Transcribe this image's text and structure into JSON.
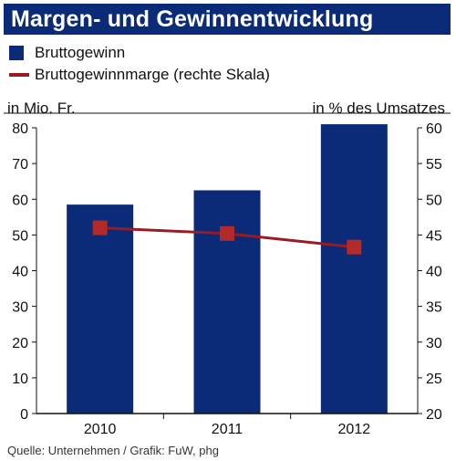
{
  "header": {
    "title": "Margen- und Gewinnentwicklung"
  },
  "legend": {
    "bar_label": "Bruttogewinn",
    "line_label": "Bruttogewinnmarge (rechte Skala)"
  },
  "footer": {
    "source": "Quelle: Unternehmen / Grafik: FuW, phg"
  },
  "colors": {
    "title_bg": "#0b2a78",
    "bar": "#0b2a78",
    "line": "#9a1b22",
    "marker": "#b32a2a"
  },
  "chart_data": {
    "type": "bar",
    "categories": [
      "2010",
      "2011",
      "2012"
    ],
    "series": [
      {
        "name": "Bruttogewinn",
        "type": "bar",
        "axis": "left",
        "values": [
          58.5,
          62.5,
          81
        ]
      },
      {
        "name": "Bruttogewinnmarge (rechte Skala)",
        "type": "line",
        "axis": "right",
        "values": [
          46,
          45.2,
          43.3
        ]
      }
    ],
    "ylabel": "in Mio. Fr.",
    "y2label": "in % des Umsatzes",
    "ylim": [
      0,
      80
    ],
    "y2lim": [
      20,
      60
    ],
    "yticks": [
      "0",
      "10",
      "20",
      "30",
      "40",
      "50",
      "60",
      "70",
      "80"
    ],
    "y2ticks": [
      "20",
      "25",
      "30",
      "35",
      "40",
      "45",
      "50",
      "55",
      "60"
    ],
    "grid": false,
    "legend_position": "top-left"
  }
}
